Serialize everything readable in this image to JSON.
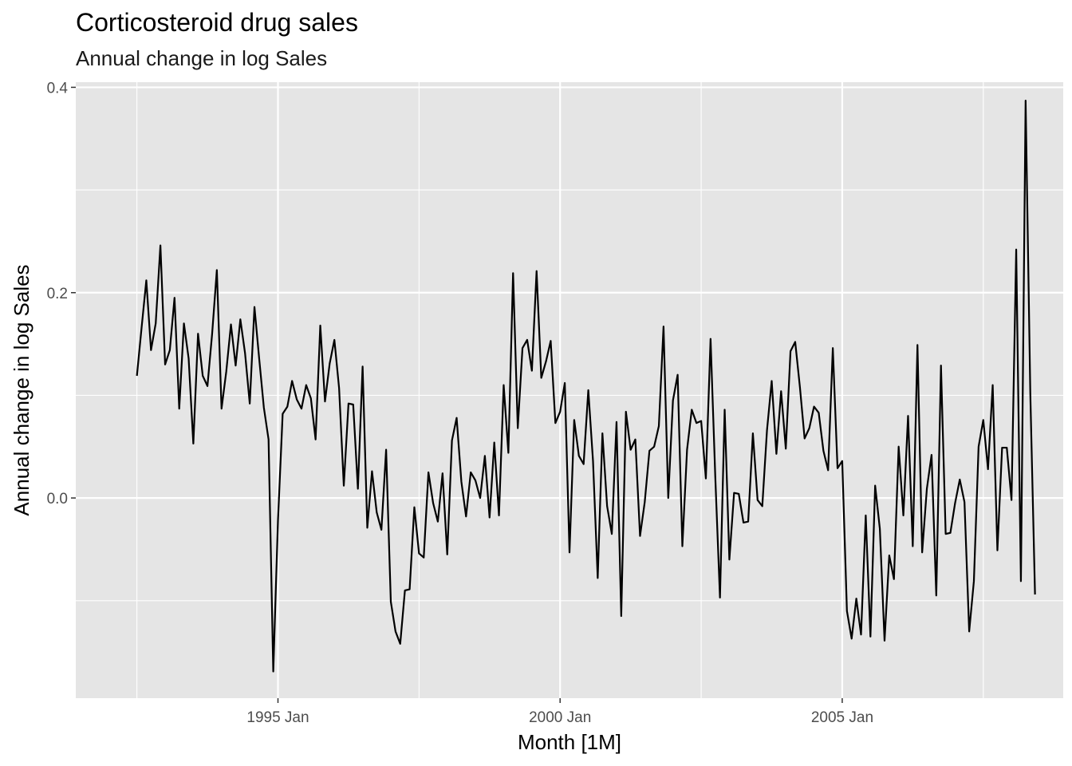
{
  "chart_data": {
    "type": "line",
    "title": "Corticosteroid drug sales",
    "subtitle": "Annual change in log Sales",
    "xlabel": "Month [1M]",
    "ylabel": "Annual change in log Sales",
    "x_tick_labels": [
      "1995 Jan",
      "2000 Jan",
      "2005 Jan"
    ],
    "y_tick_labels": [
      "0.0",
      "0.2",
      "0.4"
    ],
    "y_ticks": [
      0.0,
      0.2,
      0.4
    ],
    "ylim": [
      -0.195,
      0.405
    ],
    "xlim": [
      "1991-06",
      "2008-12"
    ],
    "grid": true,
    "background": "#e5e5e5",
    "line_color": "#000000",
    "x_start": "1992-07",
    "series": [
      {
        "values": [
          0.119,
          0.166,
          0.212,
          0.144,
          0.17,
          0.246,
          0.13,
          0.144,
          0.195,
          0.087,
          0.17,
          0.136,
          0.053,
          0.16,
          0.119,
          0.109,
          0.16,
          0.222,
          0.087,
          0.123,
          0.169,
          0.129,
          0.174,
          0.141,
          0.092,
          0.186,
          0.136,
          0.088,
          0.057,
          -0.169,
          -0.022,
          0.082,
          0.089,
          0.114,
          0.096,
          0.087,
          0.11,
          0.097,
          0.057,
          0.168,
          0.094,
          0.131,
          0.154,
          0.107,
          0.012,
          0.092,
          0.091,
          0.009,
          0.128,
          -0.029,
          0.026,
          -0.014,
          -0.031,
          0.047,
          -0.101,
          -0.13,
          -0.142,
          -0.09,
          -0.089,
          -0.009,
          -0.054,
          -0.058,
          0.025,
          -0.005,
          -0.023,
          0.024,
          -0.055,
          0.056,
          0.078,
          0.016,
          -0.018,
          0.025,
          0.017,
          0.0,
          0.041,
          -0.019,
          0.054,
          -0.017,
          0.11,
          0.044,
          0.219,
          0.068,
          0.146,
          0.154,
          0.124,
          0.221,
          0.117,
          0.133,
          0.153,
          0.073,
          0.084,
          0.112,
          -0.053,
          0.076,
          0.041,
          0.033,
          0.105,
          0.036,
          -0.078,
          0.063,
          -0.008,
          -0.035,
          0.074,
          -0.115,
          0.084,
          0.047,
          0.057,
          -0.037,
          -0.004,
          0.046,
          0.05,
          0.07,
          0.167,
          0.0,
          0.095,
          0.12,
          -0.047,
          0.047,
          0.086,
          0.073,
          0.075,
          0.019,
          0.155,
          0.021,
          -0.097,
          0.086,
          -0.06,
          0.005,
          0.004,
          -0.024,
          -0.023,
          0.063,
          -0.002,
          -0.008,
          0.066,
          0.114,
          0.043,
          0.104,
          0.048,
          0.143,
          0.152,
          0.108,
          0.058,
          0.068,
          0.089,
          0.083,
          0.046,
          0.027,
          0.146,
          0.029,
          0.036,
          -0.11,
          -0.137,
          -0.098,
          -0.133,
          -0.017,
          -0.135,
          0.012,
          -0.03,
          -0.139,
          -0.056,
          -0.079,
          0.05,
          -0.017,
          0.08,
          -0.047,
          0.149,
          -0.053,
          0.009,
          0.042,
          -0.095,
          0.129,
          -0.035,
          -0.034,
          -0.005,
          0.018,
          -0.004,
          -0.13,
          -0.081,
          0.05,
          0.076,
          0.028,
          0.11,
          -0.051,
          0.049,
          0.049,
          -0.002,
          0.242,
          -0.081,
          0.387,
          0.102,
          -0.094
        ]
      }
    ]
  }
}
